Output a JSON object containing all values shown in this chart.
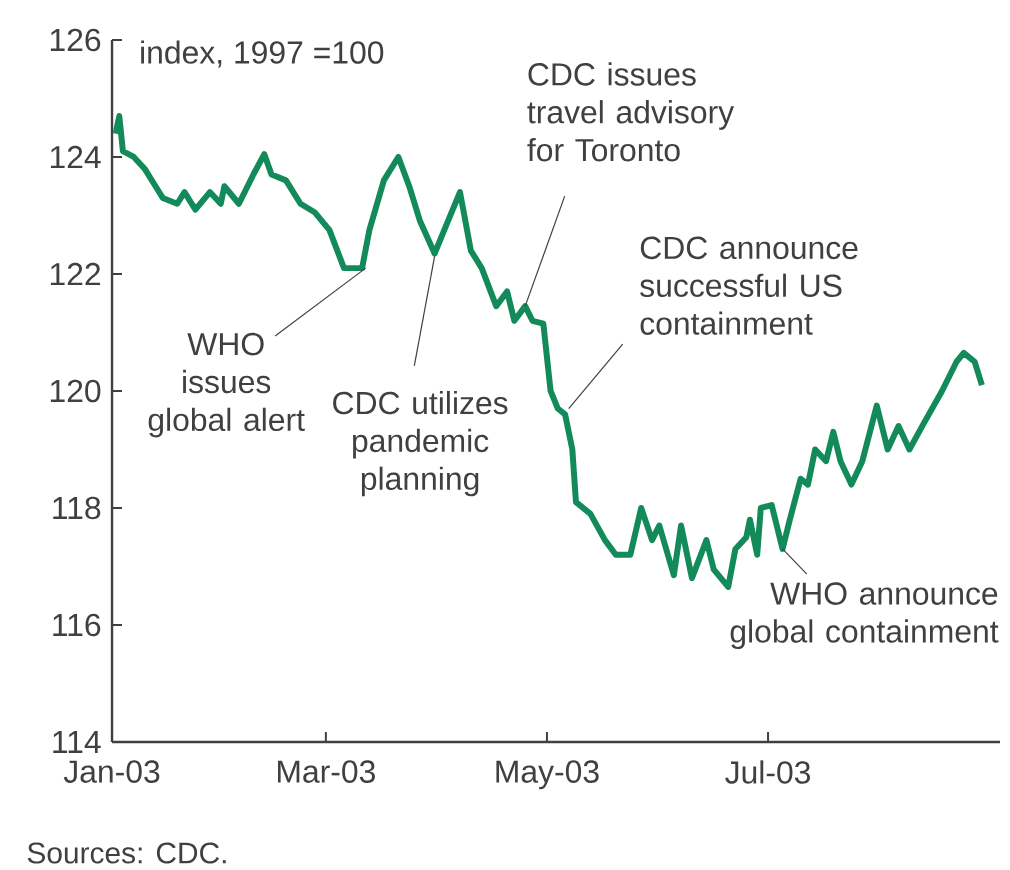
{
  "chart_data": {
    "type": "line",
    "ylabel": "index, 1997 =100",
    "x": [
      "2003-01-02",
      "2003-01-03",
      "2003-01-04",
      "2003-01-07",
      "2003-01-10",
      "2003-01-13",
      "2003-01-15",
      "2003-01-19",
      "2003-01-21",
      "2003-01-24",
      "2003-01-28",
      "2003-01-31",
      "2003-02-01",
      "2003-02-05",
      "2003-02-09",
      "2003-02-12",
      "2003-02-14",
      "2003-02-18",
      "2003-02-22",
      "2003-02-26",
      "2003-03-02",
      "2003-03-06",
      "2003-03-11",
      "2003-03-13",
      "2003-03-17",
      "2003-03-21",
      "2003-03-24",
      "2003-03-27",
      "2003-03-31",
      "2003-04-03",
      "2003-04-07",
      "2003-04-10",
      "2003-04-13",
      "2003-04-17",
      "2003-04-20",
      "2003-04-22",
      "2003-04-25",
      "2003-04-27",
      "2003-04-30",
      "2003-05-02",
      "2003-05-04",
      "2003-05-06",
      "2003-05-08",
      "2003-05-09",
      "2003-05-13",
      "2003-05-17",
      "2003-05-20",
      "2003-05-24",
      "2003-05-27",
      "2003-05-30",
      "2003-06-01",
      "2003-06-05",
      "2003-06-07",
      "2003-06-10",
      "2003-06-14",
      "2003-06-16",
      "2003-06-20",
      "2003-06-22",
      "2003-06-25",
      "2003-06-26",
      "2003-06-28",
      "2003-06-29",
      "2003-07-02",
      "2003-07-05",
      "2003-07-07",
      "2003-07-10",
      "2003-07-12",
      "2003-07-14",
      "2003-07-17",
      "2003-07-19",
      "2003-07-21",
      "2003-07-24",
      "2003-07-27",
      "2003-07-31",
      "2003-08-03",
      "2003-08-06",
      "2003-08-09",
      "2003-08-13",
      "2003-08-18",
      "2003-08-22",
      "2003-08-24",
      "2003-08-27",
      "2003-08-29"
    ],
    "series": [
      {
        "color": "#138a5a",
        "values": [
          124.4,
          124.7,
          124.1,
          124.0,
          123.8,
          123.5,
          123.3,
          123.2,
          123.4,
          123.1,
          123.4,
          123.2,
          123.5,
          123.2,
          123.7,
          124.05,
          123.7,
          123.6,
          123.2,
          123.05,
          122.75,
          122.1,
          122.1,
          122.75,
          123.6,
          124.0,
          123.5,
          122.9,
          122.35,
          122.8,
          123.4,
          122.4,
          122.1,
          121.45,
          121.7,
          121.2,
          121.45,
          121.2,
          121.15,
          120.0,
          119.7,
          119.6,
          119.0,
          118.1,
          117.9,
          117.45,
          117.2,
          117.2,
          118.0,
          117.45,
          117.7,
          116.85,
          117.7,
          116.8,
          117.45,
          116.95,
          116.65,
          117.3,
          117.5,
          117.8,
          117.2,
          118.0,
          118.05,
          117.3,
          117.8,
          118.5,
          118.4,
          119.0,
          118.8,
          119.3,
          118.8,
          118.4,
          118.8,
          119.75,
          119.0,
          119.4,
          119.0,
          119.45,
          120.0,
          120.5,
          120.65,
          120.5,
          120.1
        ]
      }
    ],
    "xlim": [
      "2003-01-01",
      "2003-09-03"
    ],
    "xticks": [
      {
        "value": "2003-01-01",
        "label": "Jan-03"
      },
      {
        "value": "2003-03-01",
        "label": "Mar-03"
      },
      {
        "value": "2003-05-01",
        "label": "May-03"
      },
      {
        "value": "2003-07-01",
        "label": "Jul-03"
      }
    ],
    "ylim": [
      114,
      126
    ],
    "yticks": [
      114,
      116,
      118,
      120,
      122,
      124,
      126
    ],
    "marker": "none",
    "line_style": "solid",
    "annotations": [
      {
        "text": "WHO issues global alert",
        "x": "2003-03-12",
        "y": 122.1
      },
      {
        "text": "CDC utilizes pandemic planning",
        "x": "2003-03-31",
        "y": 122.3
      },
      {
        "text": "CDC issues travel advisory for Toronto",
        "x": "2003-04-25",
        "y": 121.45
      },
      {
        "text": "CDC announce successful US containment",
        "x": "2003-05-07",
        "y": 119.7
      },
      {
        "text": "WHO announce global containment",
        "x": "2003-07-05",
        "y": 117.3
      },
      "Sources: CDC."
    ]
  }
}
